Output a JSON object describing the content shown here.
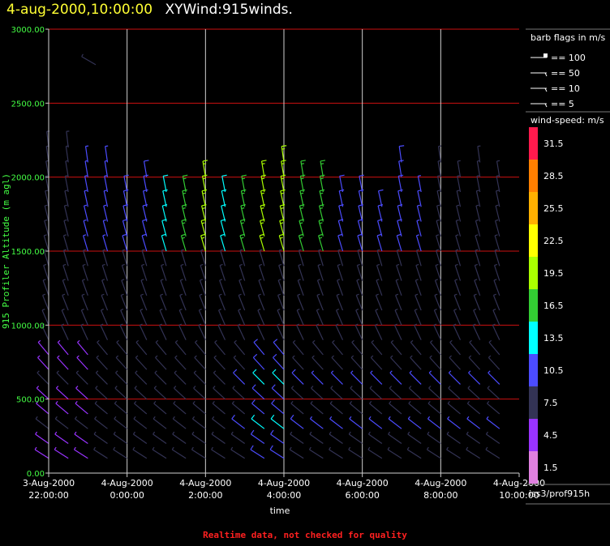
{
  "header": {
    "datetime": "4-aug-2000,10:00:00",
    "product": "XYWind:915winds."
  },
  "footer": {
    "note": "Realtime data, not checked for quality"
  },
  "legend": {
    "barb_title": "barb flags in m/s",
    "barb_items": [
      {
        "label": "== 100"
      },
      {
        "label": "== 50"
      },
      {
        "label": "== 10"
      },
      {
        "label": "== 5"
      }
    ],
    "speed_title": "wind-speed: m/s",
    "speed_bins": [
      {
        "label": "31.5",
        "color": "#ff1a4d"
      },
      {
        "label": "28.5",
        "color": "#ff7f00"
      },
      {
        "label": "25.5",
        "color": "#ffb000"
      },
      {
        "label": "22.5",
        "color": "#ffff00"
      },
      {
        "label": "19.5",
        "color": "#aaff00"
      },
      {
        "label": "16.5",
        "color": "#33cc33"
      },
      {
        "label": "13.5",
        "color": "#00ffff"
      },
      {
        "label": "10.5",
        "color": "#4c4cff"
      },
      {
        "label": "7.5",
        "color": "#333355"
      },
      {
        "label": "4.5",
        "color": "#9933ff"
      },
      {
        "label": "1.5",
        "color": "#e080e0"
      }
    ],
    "source": "iss3/prof915h"
  },
  "chart_data": {
    "type": "wind-barb time-height",
    "ylabel": "915 Profiler Altitude (m agl)",
    "xlabel": "time",
    "yticks": [
      "0.00",
      "500.00",
      "1000.00",
      "1500.00",
      "2000.00",
      "2500.00",
      "3000.00"
    ],
    "ylim": [
      0,
      3000
    ],
    "xticks": [
      {
        "date": "3-Aug-2000",
        "time": "22:00:00"
      },
      {
        "date": "4-Aug-2000",
        "time": "0:00:00"
      },
      {
        "date": "4-Aug-2000",
        "time": "2:00:00"
      },
      {
        "date": "4-Aug-2000",
        "time": "4:00:00"
      },
      {
        "date": "4-Aug-2000",
        "time": "6:00:00"
      },
      {
        "date": "4-Aug-2000",
        "time": "8:00:00"
      },
      {
        "date": "4-Aug-2000",
        "time": "10:00:00"
      }
    ],
    "xlim_hours": [
      22,
      34
    ],
    "grid": "on",
    "wind_profiles": [
      {
        "hour": 22.0,
        "top_m": 2200,
        "speed_low": 5,
        "speed_mid": 6,
        "speed_high": 8
      },
      {
        "hour": 22.5,
        "top_m": 2200,
        "speed_low": 5,
        "speed_mid": 6,
        "speed_high": 8
      },
      {
        "hour": 23.0,
        "top_m": 2100,
        "speed_low": 5,
        "speed_mid": 6,
        "speed_high": 9
      },
      {
        "hour": 23.5,
        "top_m": 2100,
        "speed_low": 6,
        "speed_mid": 6,
        "speed_high": 9
      },
      {
        "hour": 24.0,
        "top_m": 1950,
        "speed_low": 6,
        "speed_mid": 7,
        "speed_high": 10
      },
      {
        "hour": 24.5,
        "top_m": 2000,
        "speed_low": 6,
        "speed_mid": 7,
        "speed_high": 10
      },
      {
        "hour": 25.0,
        "top_m": 1900,
        "speed_low": 6,
        "speed_mid": 7,
        "speed_high": 14
      },
      {
        "hour": 25.5,
        "top_m": 1900,
        "speed_low": 6,
        "speed_mid": 8,
        "speed_high": 17
      },
      {
        "hour": 26.0,
        "top_m": 2000,
        "speed_low": 6,
        "speed_mid": 8,
        "speed_high": 18
      },
      {
        "hour": 26.5,
        "top_m": 1900,
        "speed_low": 6,
        "speed_mid": 8,
        "speed_high": 13
      },
      {
        "hour": 27.0,
        "top_m": 1900,
        "speed_low": 8,
        "speed_mid": 8,
        "speed_high": 17
      },
      {
        "hour": 27.5,
        "top_m": 2000,
        "speed_low": 10,
        "speed_mid": 8,
        "speed_high": 18
      },
      {
        "hour": 28.0,
        "top_m": 2100,
        "speed_low": 10,
        "speed_mid": 8,
        "speed_high": 18
      },
      {
        "hour": 28.5,
        "top_m": 2000,
        "speed_low": 8,
        "speed_mid": 8,
        "speed_high": 17
      },
      {
        "hour": 29.0,
        "top_m": 2000,
        "speed_low": 7,
        "speed_mid": 8,
        "speed_high": 16
      },
      {
        "hour": 29.5,
        "top_m": 1900,
        "speed_low": 7,
        "speed_mid": 8,
        "speed_high": 10
      },
      {
        "hour": 30.0,
        "top_m": 1900,
        "speed_low": 7,
        "speed_mid": 8,
        "speed_high": 10
      },
      {
        "hour": 30.5,
        "top_m": 1800,
        "speed_low": 7,
        "speed_mid": 8,
        "speed_high": 10
      },
      {
        "hour": 31.0,
        "top_m": 2100,
        "speed_low": 7,
        "speed_mid": 8,
        "speed_high": 10
      },
      {
        "hour": 31.5,
        "top_m": 1900,
        "speed_low": 7,
        "speed_mid": 8,
        "speed_high": 9
      },
      {
        "hour": 32.0,
        "top_m": 2100,
        "speed_low": 7,
        "speed_mid": 8,
        "speed_high": 6
      },
      {
        "hour": 32.5,
        "top_m": 2000,
        "speed_low": 7,
        "speed_mid": 8,
        "speed_high": 6
      },
      {
        "hour": 33.0,
        "top_m": 2100,
        "speed_low": 7,
        "speed_mid": 8,
        "speed_high": 6
      },
      {
        "hour": 33.5,
        "top_m": 2050,
        "speed_low": 7,
        "speed_mid": 8,
        "speed_high": 6
      }
    ]
  }
}
